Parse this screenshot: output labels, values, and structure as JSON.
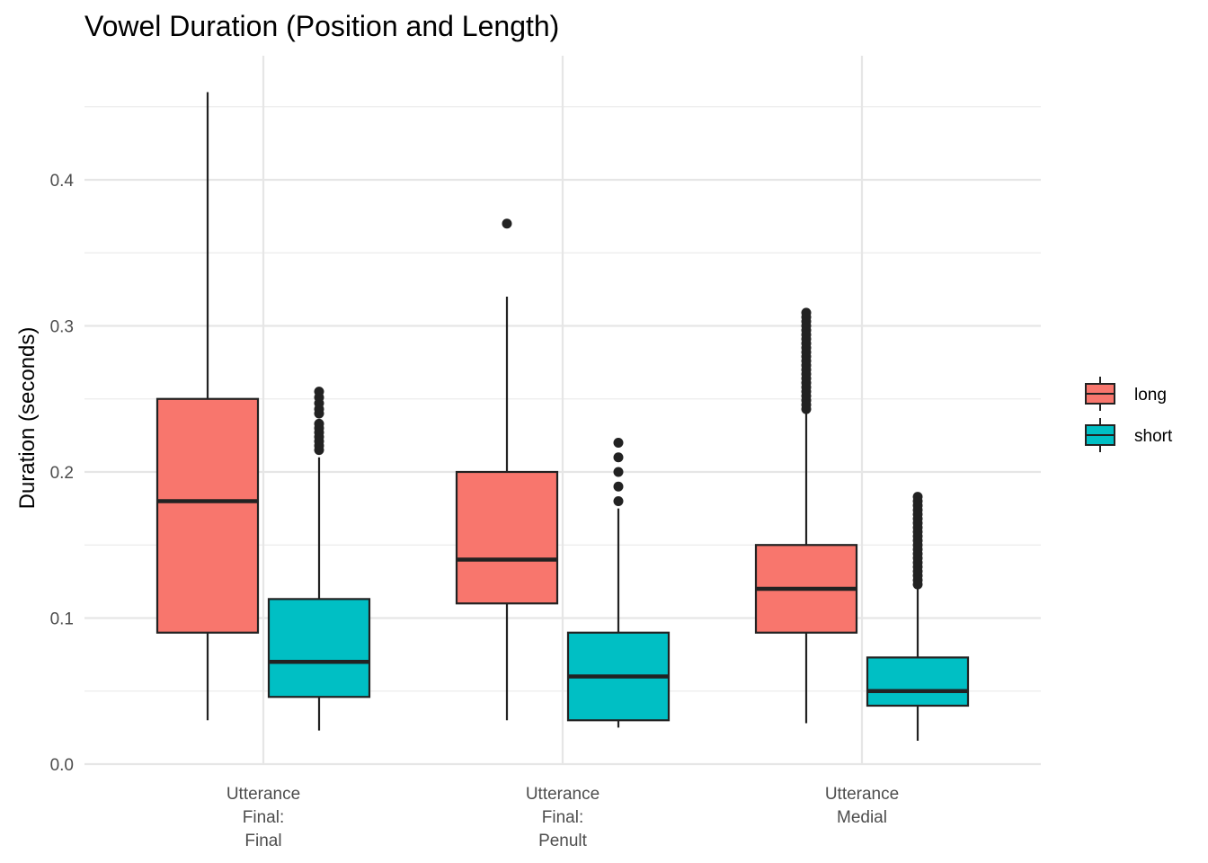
{
  "chart_data": {
    "type": "boxplot",
    "title": "Vowel Duration (Position and Length)",
    "xlabel": "",
    "ylabel": "Duration (seconds)",
    "ylim": [
      0,
      0.47
    ],
    "yticks": [
      "0.0",
      "0.1",
      "0.2",
      "0.3",
      "0.4"
    ],
    "categories": [
      [
        "Utterance",
        "Final:",
        "Final"
      ],
      [
        "Utterance",
        "Final:",
        "Penult"
      ],
      [
        "Utterance",
        "Medial"
      ]
    ],
    "grid": true,
    "legend_position": "right",
    "series": [
      {
        "name": "long",
        "color": "#F8766D",
        "boxes": [
          {
            "min": 0.03,
            "q1": 0.09,
            "median": 0.18,
            "q3": 0.25,
            "max": 0.46,
            "outliers": []
          },
          {
            "min": 0.03,
            "q1": 0.11,
            "median": 0.14,
            "q3": 0.2,
            "max": 0.32,
            "outliers": [
              0.37
            ]
          },
          {
            "min": 0.028,
            "q1": 0.09,
            "median": 0.12,
            "q3": 0.15,
            "max": 0.24,
            "outliers": [
              0.243,
              0.246,
              0.249,
              0.252,
              0.255,
              0.258,
              0.261,
              0.264,
              0.267,
              0.27,
              0.273,
              0.276,
              0.279,
              0.282,
              0.285,
              0.288,
              0.291,
              0.294,
              0.297,
              0.3,
              0.303,
              0.306,
              0.309
            ]
          }
        ]
      },
      {
        "name": "short",
        "color": "#00BFC4",
        "boxes": [
          {
            "min": 0.023,
            "q1": 0.046,
            "median": 0.07,
            "q3": 0.113,
            "max": 0.21,
            "outliers": [
              0.215,
              0.218,
              0.221,
              0.224,
              0.227,
              0.23,
              0.233,
              0.24,
              0.243,
              0.247,
              0.251,
              0.255
            ]
          },
          {
            "min": 0.025,
            "q1": 0.03,
            "median": 0.06,
            "q3": 0.09,
            "max": 0.175,
            "outliers": [
              0.18,
              0.19,
              0.2,
              0.21,
              0.22
            ]
          },
          {
            "min": 0.016,
            "q1": 0.04,
            "median": 0.05,
            "q3": 0.073,
            "max": 0.12,
            "outliers": [
              0.123,
              0.126,
              0.129,
              0.132,
              0.135,
              0.138,
              0.141,
              0.144,
              0.147,
              0.15,
              0.153,
              0.156,
              0.159,
              0.162,
              0.165,
              0.168,
              0.171,
              0.174,
              0.177,
              0.18,
              0.183
            ]
          }
        ]
      }
    ]
  }
}
